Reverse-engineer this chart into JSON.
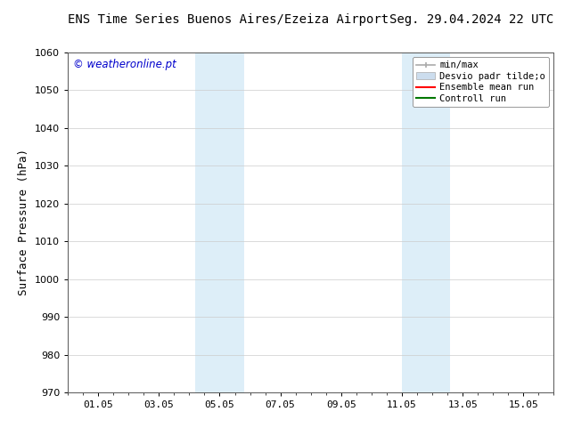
{
  "title_left": "ENS Time Series Buenos Aires/Ezeiza Airport",
  "title_right": "Seg. 29.04.2024 22 UTC",
  "ylabel": "Surface Pressure (hPa)",
  "ylim": [
    970,
    1060
  ],
  "yticks": [
    970,
    980,
    990,
    1000,
    1010,
    1020,
    1030,
    1040,
    1050,
    1060
  ],
  "xtick_labels": [
    "01.05",
    "03.05",
    "05.05",
    "07.05",
    "09.05",
    "11.05",
    "13.05",
    "15.05"
  ],
  "xtick_positions": [
    1,
    3,
    5,
    7,
    9,
    11,
    13,
    15
  ],
  "xlim": [
    0,
    16
  ],
  "shaded_regions": [
    {
      "x_start": 4.2,
      "x_end": 5.8
    },
    {
      "x_start": 11.0,
      "x_end": 12.6
    }
  ],
  "shaded_color": "#ddeef8",
  "watermark_text": "© weatheronline.pt",
  "watermark_color": "#0000cc",
  "legend_entries": [
    {
      "label": "min/max",
      "color": "#aaaaaa",
      "style": "minmax"
    },
    {
      "label": "Desvio padr tilde;o",
      "color": "#ccddee",
      "style": "band"
    },
    {
      "label": "Ensemble mean run",
      "color": "#ff0000",
      "style": "line"
    },
    {
      "label": "Controll run",
      "color": "#007700",
      "style": "line"
    }
  ],
  "background_color": "#ffffff",
  "plot_bg_color": "#ffffff",
  "grid_color": "#cccccc",
  "title_fontsize": 10,
  "tick_fontsize": 8,
  "ylabel_fontsize": 9
}
